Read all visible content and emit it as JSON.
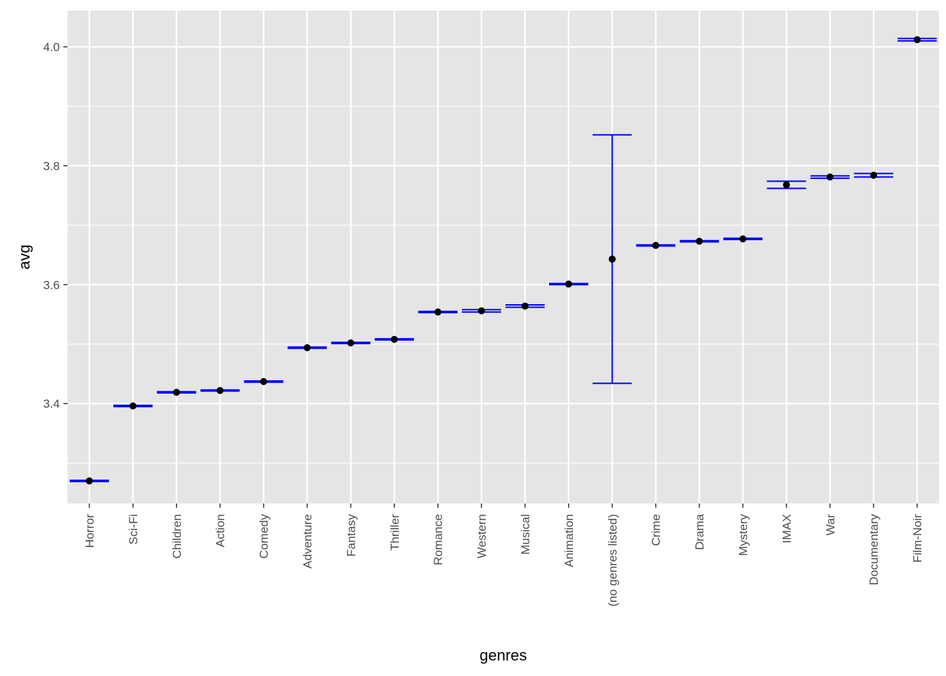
{
  "chart_data": {
    "type": "scatter",
    "error_bars": true,
    "xlabel": "genres",
    "ylabel": "avg",
    "categories": [
      "Horror",
      "Sci-Fi",
      "Children",
      "Action",
      "Comedy",
      "Adventure",
      "Fantasy",
      "Thriller",
      "Romance",
      "Western",
      "Musical",
      "Animation",
      "(no genres listed)",
      "Crime",
      "Drama",
      "Mystery",
      "IMAX",
      "War",
      "Documentary",
      "Film-Noir"
    ],
    "series": [
      {
        "values": [
          3.27,
          3.396,
          3.419,
          3.422,
          3.437,
          3.494,
          3.502,
          3.508,
          3.554,
          3.556,
          3.564,
          3.601,
          3.643,
          3.666,
          3.673,
          3.677,
          3.768,
          3.781,
          3.784,
          4.012
        ],
        "lower": [
          3.269,
          3.395,
          3.418,
          3.421,
          3.436,
          3.493,
          3.501,
          3.507,
          3.553,
          3.554,
          3.562,
          3.6,
          3.434,
          3.665,
          3.672,
          3.676,
          3.762,
          3.779,
          3.781,
          4.01
        ],
        "upper": [
          3.271,
          3.397,
          3.42,
          3.423,
          3.438,
          3.495,
          3.503,
          3.509,
          3.555,
          3.558,
          3.566,
          3.602,
          3.852,
          3.667,
          3.674,
          3.678,
          3.774,
          3.783,
          3.787,
          4.014
        ]
      }
    ],
    "yticks": [
      "3.4",
      "3.6",
      "3.8",
      "4.0"
    ],
    "ylim": [
      3.232,
      4.061
    ],
    "grid": true,
    "colors": {
      "panel_background": "#e5e5e5",
      "grid": "#ffffff",
      "error_bar": "#0000ff",
      "point": "#000000"
    }
  }
}
